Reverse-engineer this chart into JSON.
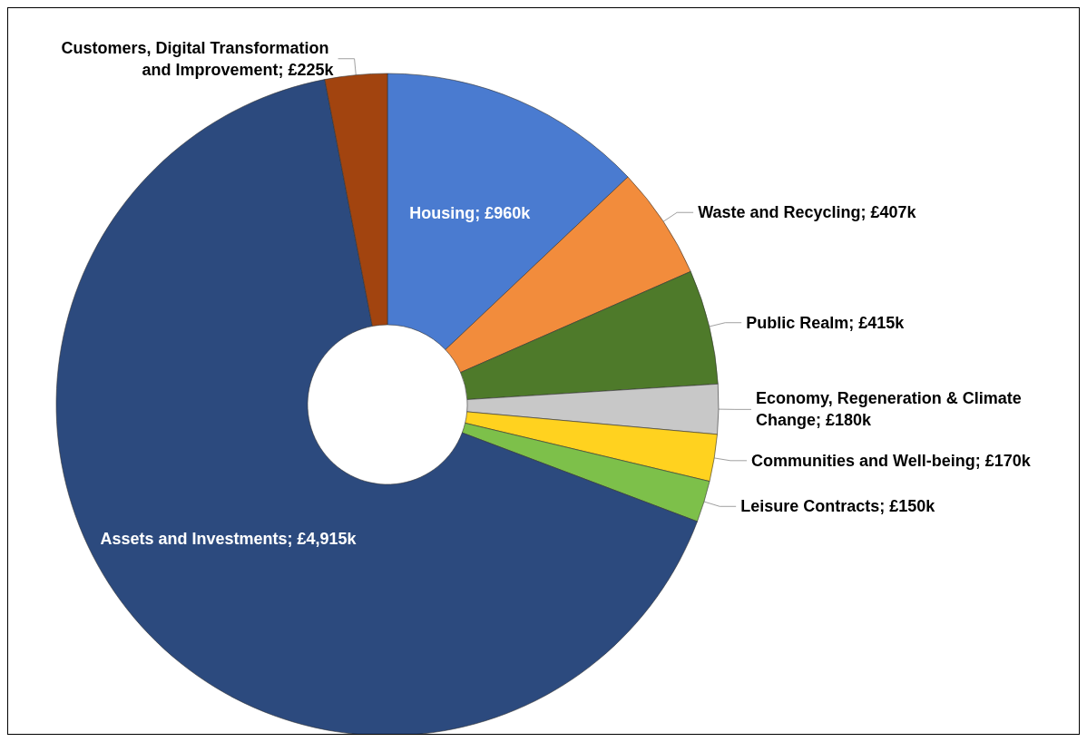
{
  "chart_data": {
    "type": "donut",
    "categories": [
      "Housing",
      "Waste and Recycling",
      "Public Realm",
      "Economy, Regeneration & Climate Change",
      "Communities and Well-being",
      "Leisure Contracts",
      "Assets and Investments",
      "Customers, Digital Transformation and Improvement"
    ],
    "values": [
      960,
      407,
      415,
      180,
      170,
      150,
      4915,
      225
    ],
    "value_labels": [
      "£960k",
      "£407k",
      "£415k",
      "£180k",
      "£170k",
      "£150k",
      "£4,915k",
      "£225k"
    ],
    "colors": [
      "#4a7bd0",
      "#f28c3c",
      "#4e7a2a",
      "#c8c8c8",
      "#ffd21f",
      "#7dc04a",
      "#2c4a7e",
      "#a2440f"
    ]
  }
}
